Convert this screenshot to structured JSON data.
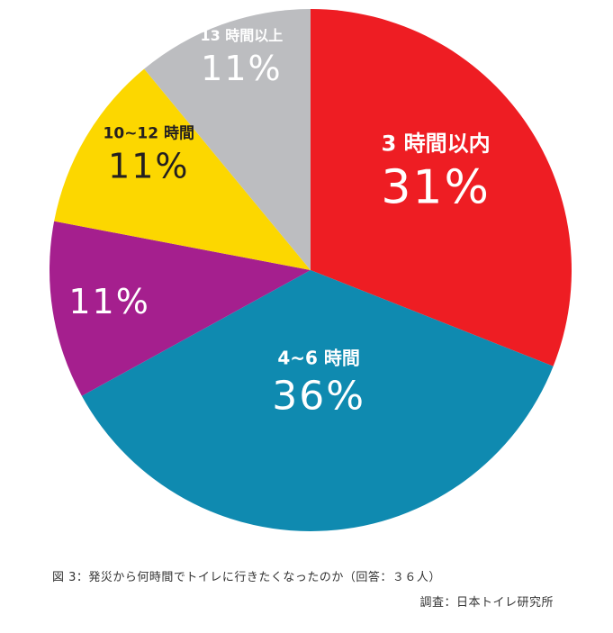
{
  "chart_data": {
    "type": "pie",
    "slices": [
      {
        "label": "3 時間以内",
        "value": 31,
        "display": "31%",
        "color": "#ee1d23",
        "text_color": "#ffffff"
      },
      {
        "label": "4~6 時間",
        "value": 36,
        "display": "36%",
        "color": "#0f8ab0",
        "text_color": "#ffffff"
      },
      {
        "label": "",
        "value": 11,
        "display": "11%",
        "color": "#a51f8e",
        "text_color": "#ffffff"
      },
      {
        "label": "10~12 時間",
        "value": 11,
        "display": "11%",
        "color": "#fcd700",
        "text_color": "#231f20"
      },
      {
        "label": "13 時間以上",
        "value": 11,
        "display": "11%",
        "color": "#bcbdc0",
        "text_color": "#ffffff"
      }
    ]
  },
  "caption": {
    "title": "図 3：発災から何時間でトイレに行きたくなったのか（回答：３６人）",
    "source": "調査：日本トイレ研究所"
  }
}
